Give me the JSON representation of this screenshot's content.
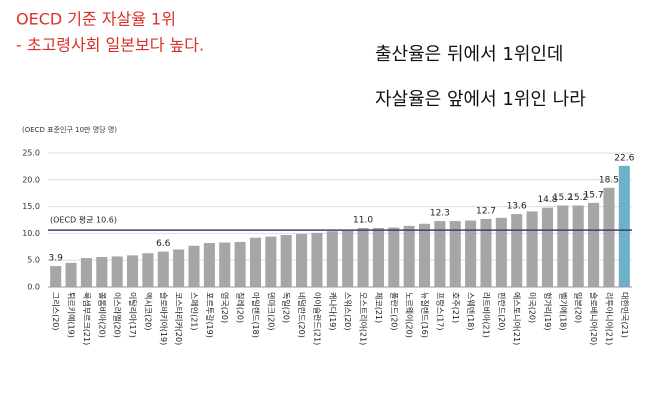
{
  "chart_data": {
    "type": "bar",
    "title": "OECD 기준 자살율 1위",
    "subtitle": "- 초고령사회 일본보다 높다.",
    "annotations": [
      "출산율은 뒤에서 1위인데",
      "자살율은 앞에서 1위인 나라"
    ],
    "y_label": "(OECD 표준인구 10만 명당 명)",
    "categories": [
      "그리스(20)",
      "튀르키예(19)",
      "룩셈부르크(21)",
      "콜롬비아(20)",
      "이스라엘(20)",
      "이탈리아(17)",
      "멕시코(20)",
      "슬로바키아(19)",
      "코스타리카(20)",
      "스페인(21)",
      "포르투갈(19)",
      "영국(20)",
      "칠레(20)",
      "아일랜드(18)",
      "덴마크(20)",
      "독일(20)",
      "네덜란드(20)",
      "아이슬란드(21)",
      "캐나다(19)",
      "스위스(20)",
      "오스트리아(21)",
      "체코(21)",
      "폴란드(20)",
      "노르웨이(20)",
      "뉴질랜드(16)",
      "프랑스(17)",
      "호주(21)",
      "스웨덴(18)",
      "라트비아(21)",
      "핀란드(20)",
      "에스토니아(21)",
      "미국(20)",
      "헝가리(19)",
      "벨기에(18)",
      "일본(20)",
      "슬로베니아(20)",
      "리투아니아(21)",
      "대한민국(21)"
    ],
    "values": [
      3.9,
      4.5,
      5.4,
      5.6,
      5.7,
      5.9,
      6.3,
      6.6,
      7.0,
      7.7,
      8.2,
      8.3,
      8.4,
      9.2,
      9.4,
      9.7,
      9.9,
      10.1,
      10.4,
      10.5,
      11.0,
      11.0,
      11.1,
      11.4,
      11.8,
      12.3,
      12.3,
      12.4,
      12.7,
      12.9,
      13.6,
      14.1,
      14.8,
      15.2,
      15.2,
      15.7,
      18.5,
      22.6
    ],
    "value_labels": [
      "3.9",
      null,
      null,
      null,
      null,
      null,
      null,
      "6.6",
      null,
      null,
      null,
      null,
      null,
      null,
      null,
      null,
      null,
      null,
      null,
      null,
      "11.0",
      null,
      null,
      null,
      null,
      "12.3",
      null,
      null,
      "12.7",
      null,
      "13.6",
      null,
      "14.8",
      "15.2",
      "15.2",
      "15.7",
      "18.5",
      "22.6"
    ],
    "colors": [
      "#a6a6a8",
      "#a6a6a8",
      "#a6a6a8",
      "#a6a6a8",
      "#a6a6a8",
      "#a6a6a8",
      "#a6a6a8",
      "#a6a6a8",
      "#a6a6a8",
      "#a6a6a8",
      "#a6a6a8",
      "#a6a6a8",
      "#a6a6a8",
      "#a6a6a8",
      "#a6a6a8",
      "#a6a6a8",
      "#a6a6a8",
      "#a6a6a8",
      "#a6a6a8",
      "#a6a6a8",
      "#a6a6a8",
      "#a6a6a8",
      "#a6a6a8",
      "#a6a6a8",
      "#a6a6a8",
      "#a6a6a8",
      "#a6a6a8",
      "#a6a6a8",
      "#a6a6a8",
      "#a6a6a8",
      "#a6a6a8",
      "#a6a6a8",
      "#a6a6a8",
      "#a6a6a8",
      "#a6a6a8",
      "#a6a6a8",
      "#a6a6a8",
      "#6cb1c9"
    ],
    "average": {
      "value": 10.6,
      "label": "(OECD 평균 10.6)"
    },
    "ylim": [
      0,
      25
    ],
    "yticks": [
      {
        "value": 0,
        "label": "0.0"
      },
      {
        "value": 5,
        "label": "5.0"
      },
      {
        "value": 10,
        "label": "10.0"
      },
      {
        "value": 15,
        "label": "15.0"
      },
      {
        "value": 20,
        "label": "20.0"
      },
      {
        "value": 25,
        "label": "25.0"
      }
    ],
    "grid": true
  }
}
